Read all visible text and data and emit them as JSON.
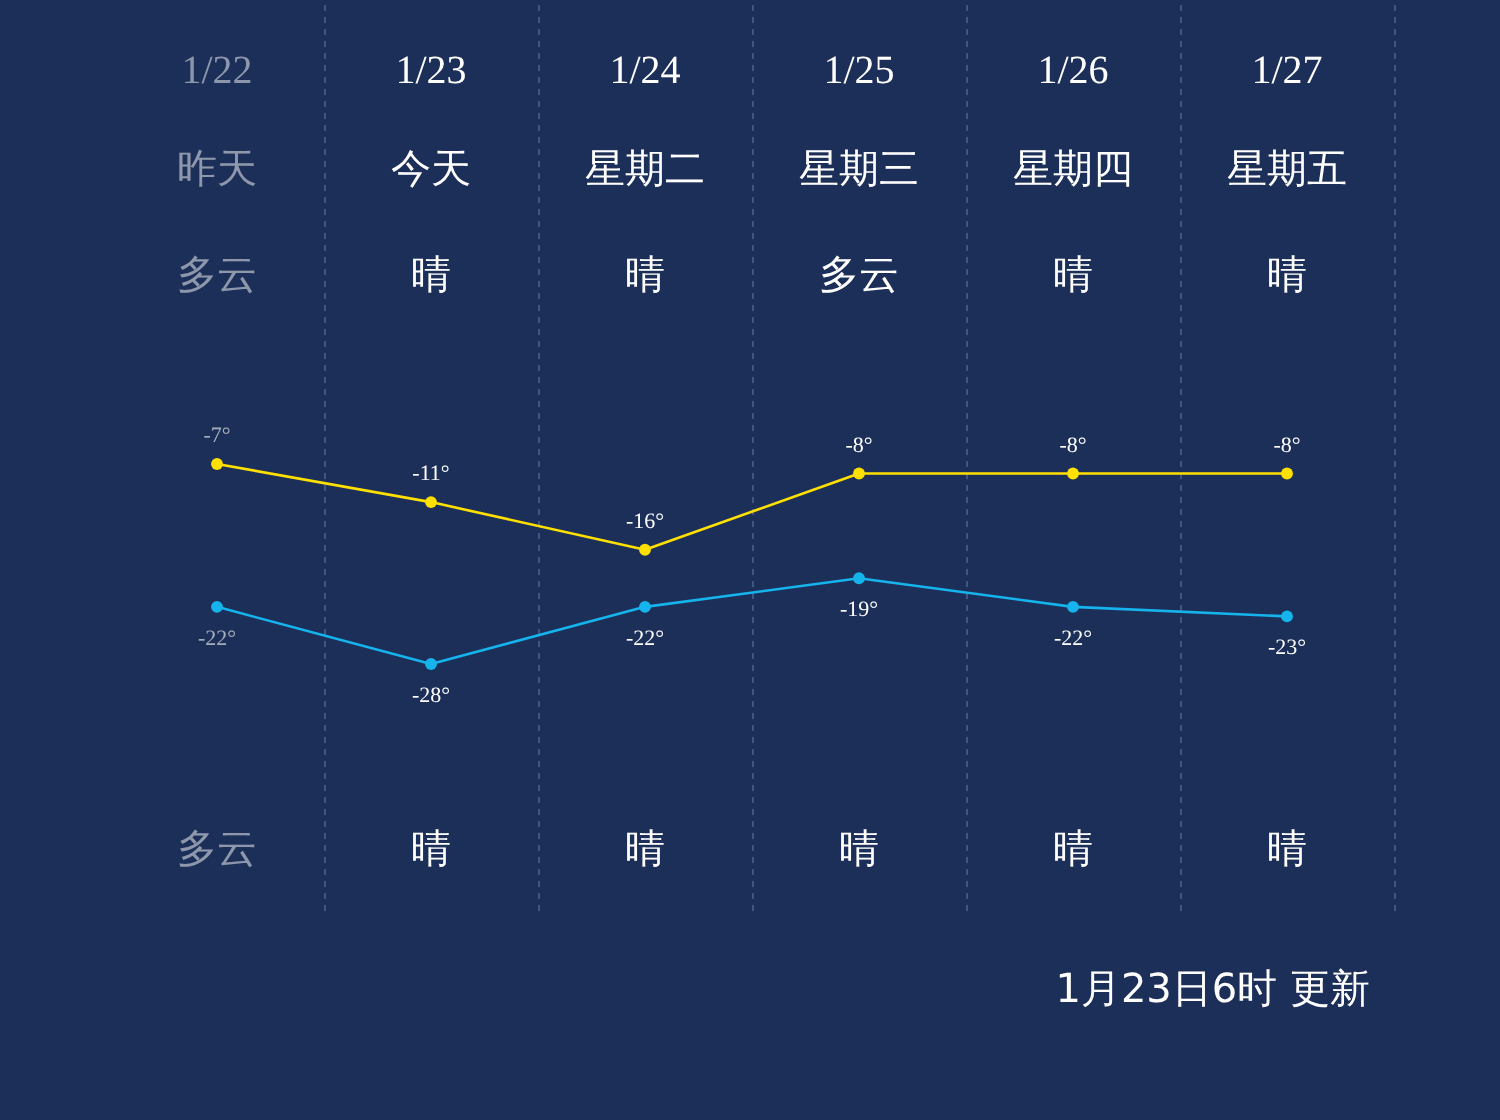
{
  "chart_data": {
    "type": "line",
    "categories": [
      "1/22",
      "1/23",
      "1/24",
      "1/25",
      "1/26",
      "1/27"
    ],
    "series": [
      {
        "color": "#ffe000",
        "values": [
          -7,
          -11,
          -16,
          -8,
          -8,
          -8
        ],
        "value_labels": [
          "-7°",
          "-11°",
          "-16°",
          "-8°",
          "-8°",
          "-8°"
        ]
      },
      {
        "color": "#16b4ec",
        "values": [
          -22,
          -28,
          -22,
          -19,
          -22,
          -23
        ],
        "value_labels": [
          "-22°",
          "-28°",
          "-22°",
          "-19°",
          "-22°",
          "-23°"
        ]
      }
    ],
    "marker": "circle",
    "grid": "x",
    "annotations": [
      "昨天",
      "今天",
      "星期二",
      "星期三",
      "星期四",
      "星期五",
      "多云",
      "晴",
      "晴",
      "多云",
      "晴",
      "晴",
      "多云",
      "晴",
      "晴",
      "晴",
      "晴",
      "晴",
      "1月23日6时 更新"
    ]
  }
}
